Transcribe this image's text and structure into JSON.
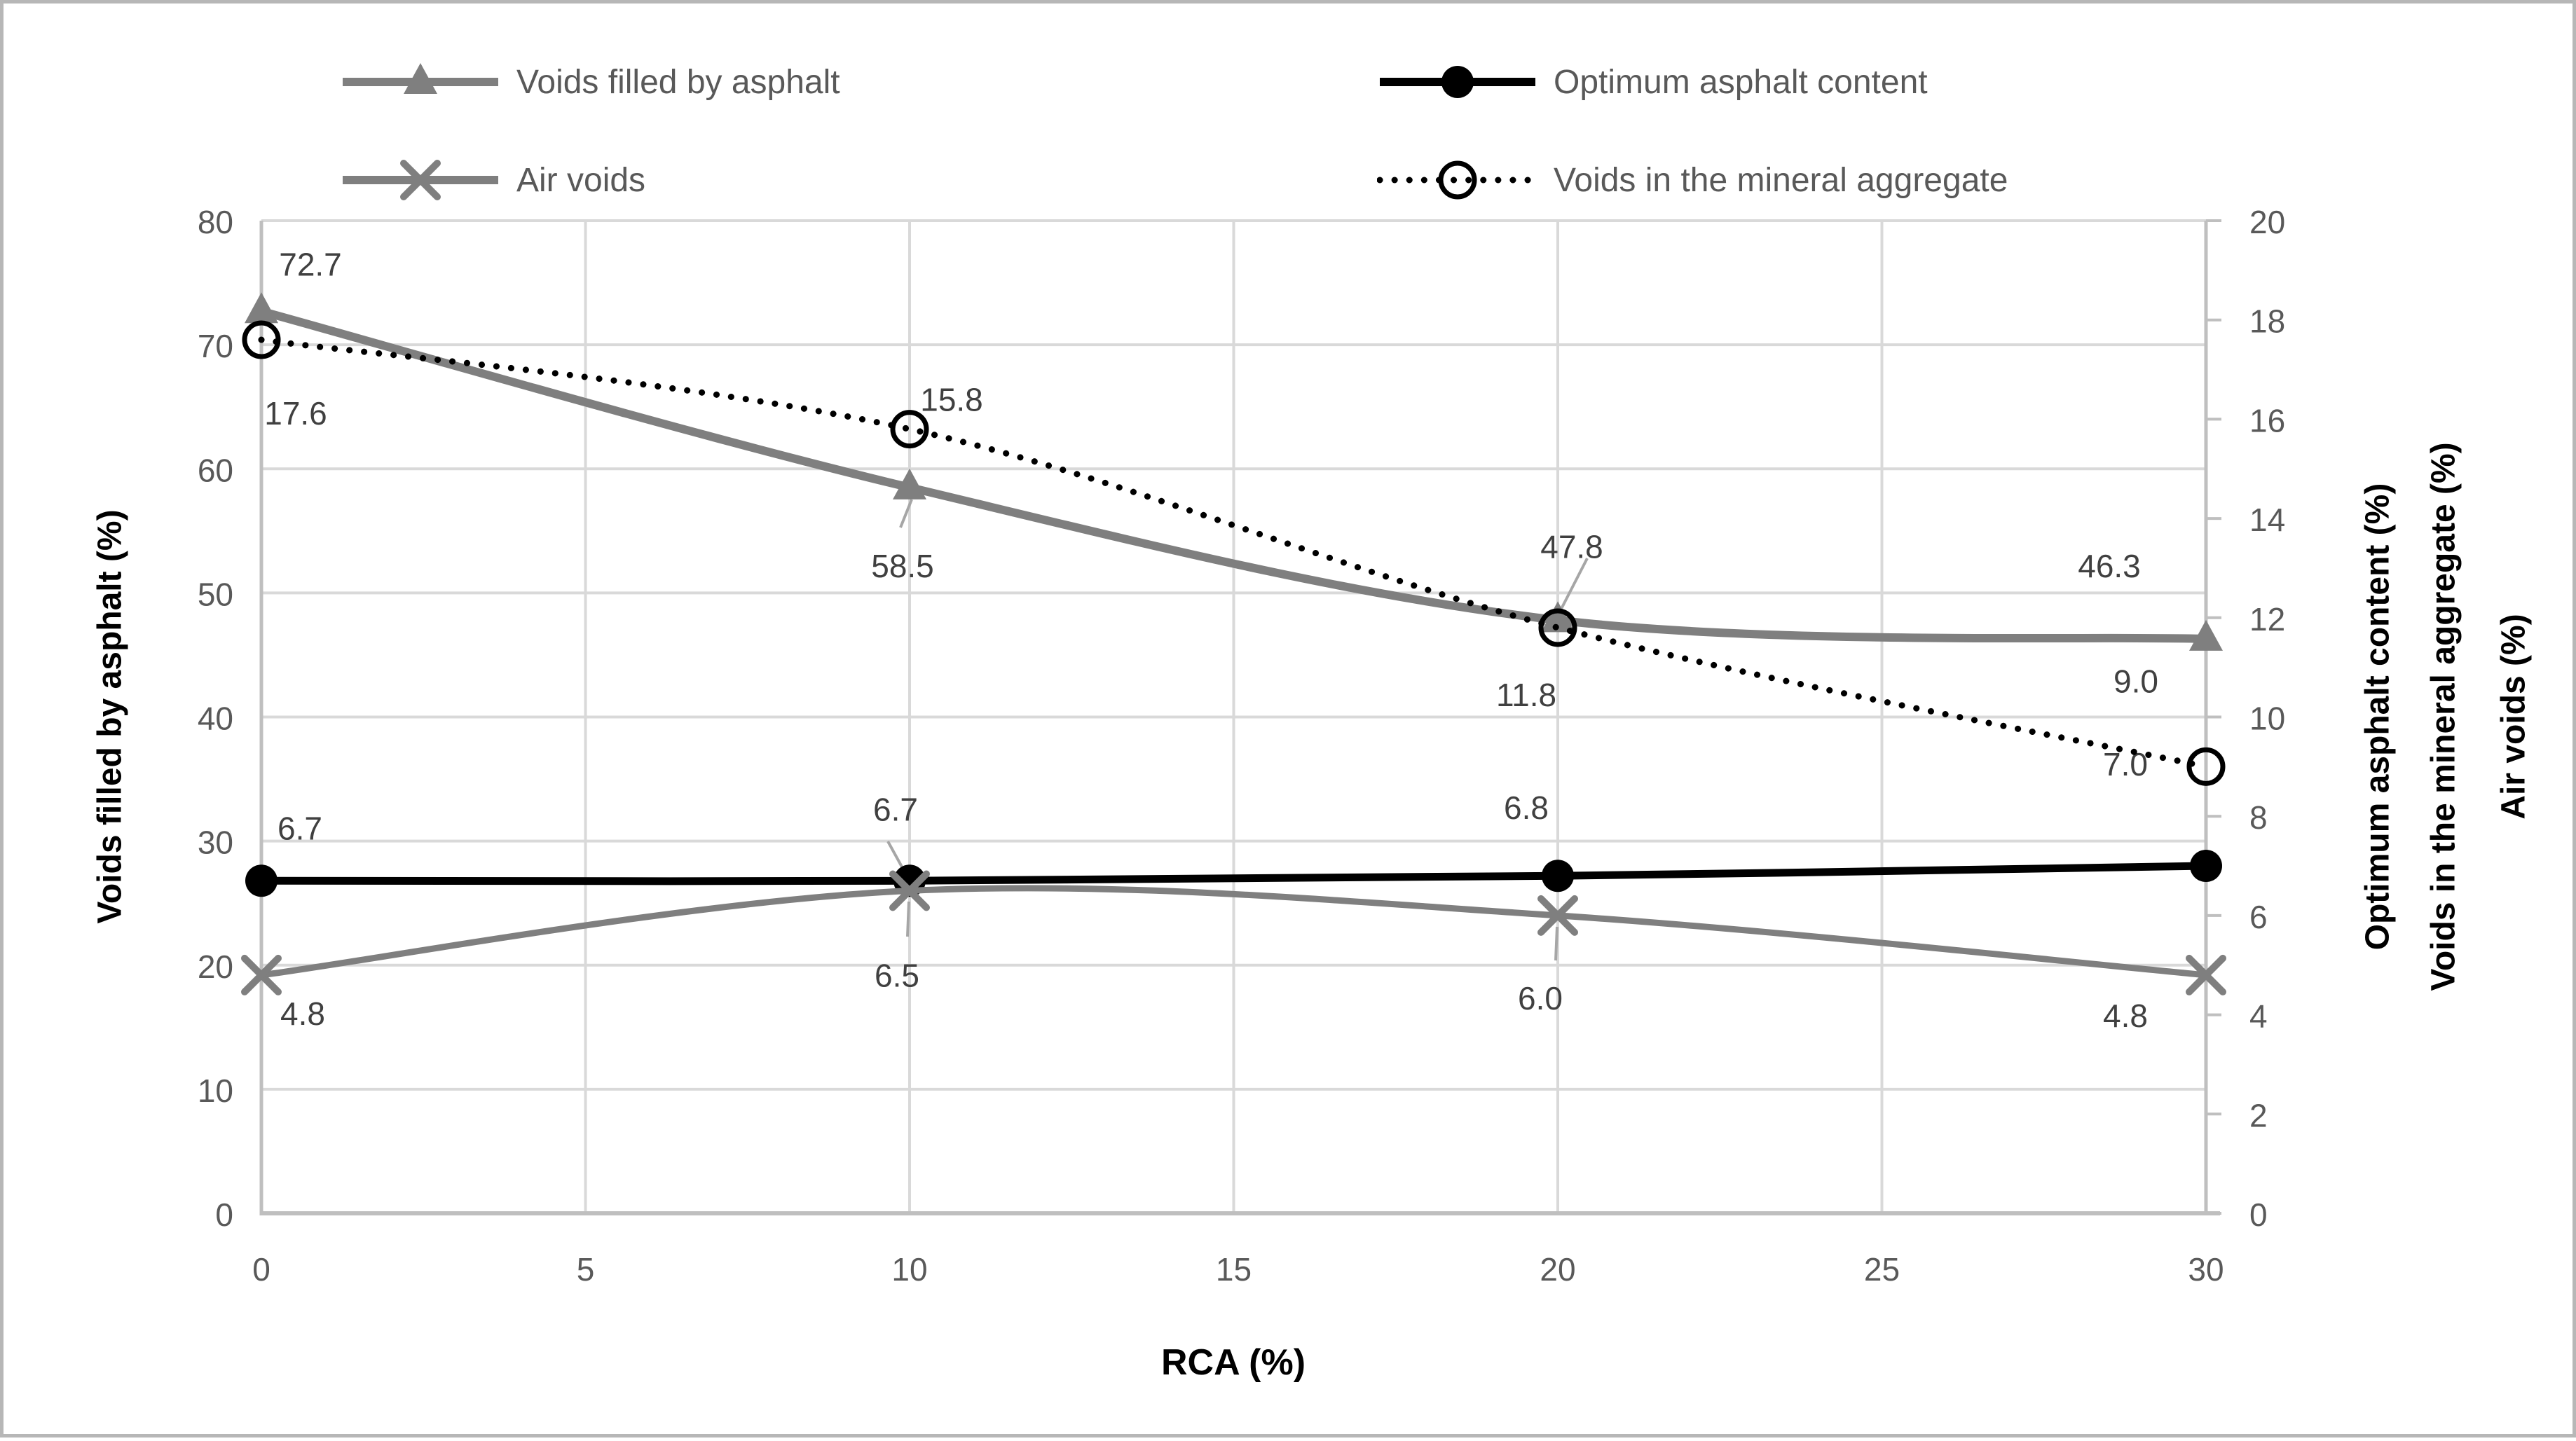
{
  "chart_data": {
    "type": "line",
    "x": [
      0,
      10,
      20,
      30
    ],
    "x_ticks": [
      0,
      5,
      10,
      15,
      20,
      25,
      30
    ],
    "xlabel": "RCA (%)",
    "xlim": [
      0,
      30
    ],
    "grid": true,
    "legend_position": "top",
    "left_axis": {
      "label": "Voids filled by asphalt (%)",
      "range": [
        0,
        80
      ],
      "ticks": [
        0,
        10,
        20,
        30,
        40,
        50,
        60,
        70,
        80
      ]
    },
    "right_axis": {
      "labels": [
        "Optimum asphalt content (%)",
        "Voids in the mineral aggregate (%)",
        "Air voids (%)"
      ],
      "range": [
        0,
        20
      ],
      "ticks": [
        0,
        2,
        4,
        6,
        8,
        10,
        12,
        14,
        16,
        18,
        20
      ]
    },
    "series": [
      {
        "name": "Voids filled by asphalt",
        "axis": "left",
        "color": "#7f7f7f",
        "marker": "triangle",
        "line_style": "solid",
        "smooth": true,
        "values": [
          72.7,
          58.5,
          47.8,
          46.3
        ],
        "data_labels": [
          "72.7",
          "58.5",
          "47.8",
          "46.3"
        ]
      },
      {
        "name": "Optimum asphalt content",
        "axis": "right",
        "color": "#000000",
        "marker": "circle",
        "line_style": "solid",
        "smooth": true,
        "values": [
          6.7,
          6.7,
          6.8,
          7.0
        ],
        "data_labels": [
          "6.7",
          "6.7",
          "6.8",
          "7.0"
        ]
      },
      {
        "name": "Air voids",
        "axis": "right",
        "color": "#7f7f7f",
        "marker": "x",
        "line_style": "solid",
        "smooth": true,
        "values": [
          4.8,
          6.5,
          6.0,
          4.8
        ],
        "data_labels": [
          "4.8",
          "6.5",
          "6.0",
          "4.8"
        ]
      },
      {
        "name": "Voids in the mineral aggregate",
        "axis": "right",
        "color": "#000000",
        "marker": "open-circle",
        "line_style": "dotted",
        "smooth": true,
        "values": [
          17.6,
          15.8,
          11.8,
          9.0
        ],
        "data_labels": [
          "17.6",
          "15.8",
          "11.8",
          "9.0"
        ]
      }
    ],
    "colors": {
      "grid": "#d9d9d9",
      "axis": "#bfbfbf",
      "tick_label": "#595959",
      "data_label": "#404040",
      "legend_text": "#595959",
      "leader_line": "#a6a6a6"
    }
  }
}
